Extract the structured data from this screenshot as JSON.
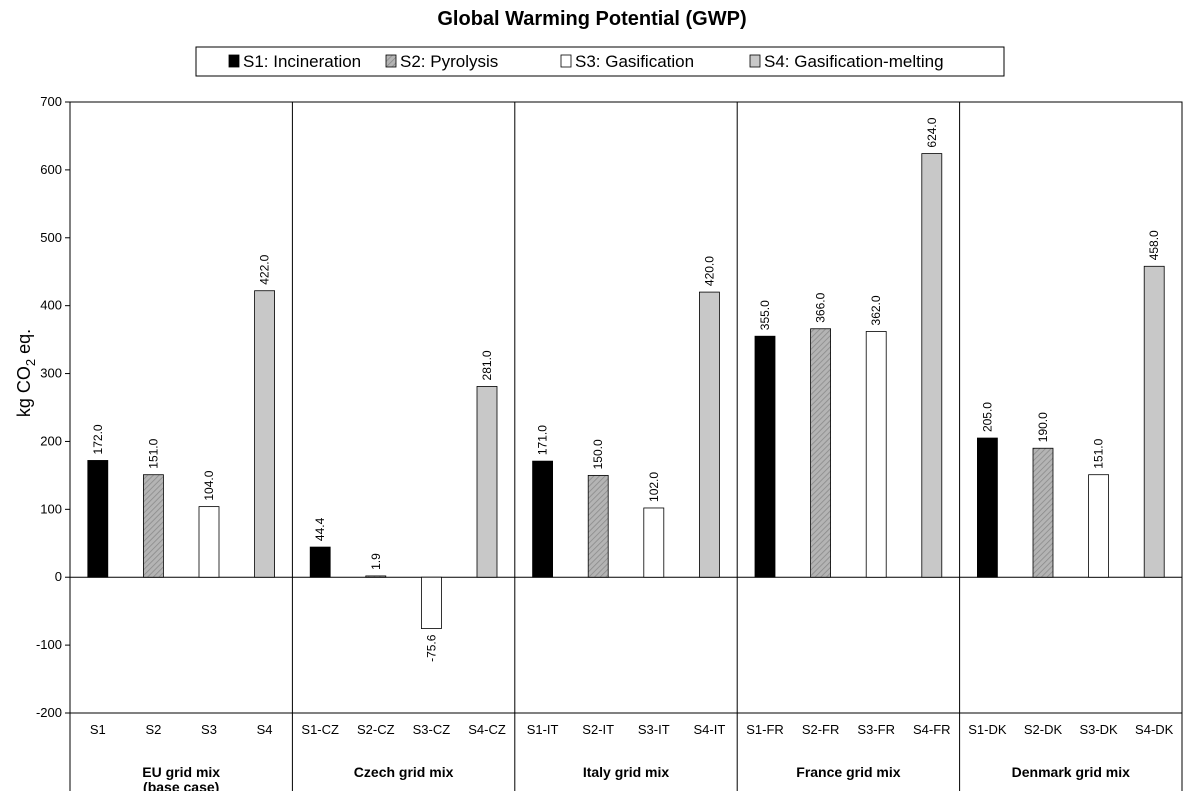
{
  "chart_data": {
    "type": "bar",
    "title": "Global Warming Potential (GWP)",
    "ylabel": "kg CO",
    "ylabel_sub": "2",
    "ylabel_suffix": " eq.",
    "ylim": [
      -200,
      700
    ],
    "yticks": [
      -200,
      -100,
      0,
      100,
      200,
      300,
      400,
      500,
      600,
      700
    ],
    "legend_position": "top",
    "series": [
      {
        "name": "S1: Incineration",
        "style": "black",
        "color": "#000000"
      },
      {
        "name": "S2: Pyrolysis",
        "style": "hatched",
        "color": "#a8a8a8"
      },
      {
        "name": "S3: Gasification",
        "style": "white",
        "color": "#ffffff"
      },
      {
        "name": "S4: Gasification-melting",
        "style": "lightgray",
        "color": "#c8c8c8"
      }
    ],
    "groups": [
      {
        "label_lines": [
          "EU grid mix",
          "(base case)"
        ],
        "categories": [
          "S1",
          "S2",
          "S3",
          "S4"
        ],
        "values": [
          172.0,
          151.0,
          104.0,
          422.0
        ],
        "value_labels": [
          "172.0",
          "151.0",
          "104.0",
          "422.0"
        ]
      },
      {
        "label_lines": [
          "Czech grid mix"
        ],
        "categories": [
          "S1-CZ",
          "S2-CZ",
          "S3-CZ",
          "S4-CZ"
        ],
        "values": [
          44.4,
          1.9,
          -75.6,
          281.0
        ],
        "value_labels": [
          "44.4",
          "1.9",
          "-75.6",
          "281.0"
        ]
      },
      {
        "label_lines": [
          "Italy grid mix"
        ],
        "categories": [
          "S1-IT",
          "S2-IT",
          "S3-IT",
          "S4-IT"
        ],
        "values": [
          171.0,
          150.0,
          102.0,
          420.0
        ],
        "value_labels": [
          "171.0",
          "150.0",
          "102.0",
          "420.0"
        ]
      },
      {
        "label_lines": [
          "France grid mix"
        ],
        "categories": [
          "S1-FR",
          "S2-FR",
          "S3-FR",
          "S4-FR"
        ],
        "values": [
          355.0,
          366.0,
          362.0,
          624.0
        ],
        "value_labels": [
          "355.0",
          "366.0",
          "362.0",
          "624.0"
        ]
      },
      {
        "label_lines": [
          "Denmark grid mix"
        ],
        "categories": [
          "S1-DK",
          "S2-DK",
          "S3-DK",
          "S4-DK"
        ],
        "values": [
          205.0,
          190.0,
          151.0,
          458.0
        ],
        "value_labels": [
          "205.0",
          "190.0",
          "151.0",
          "458.0"
        ]
      }
    ]
  }
}
